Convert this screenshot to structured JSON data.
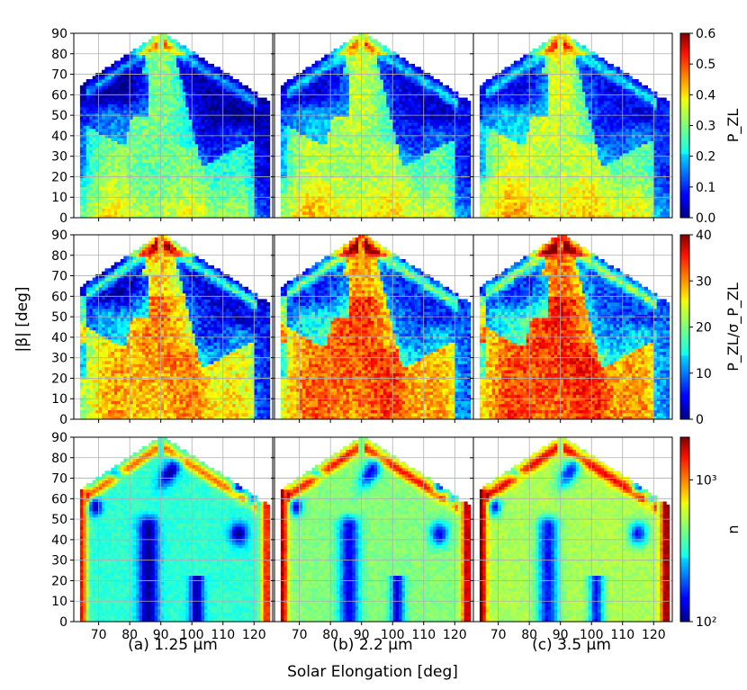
{
  "figure": {
    "ylabel": "|β| [deg]",
    "xlabel": "Solar Elongation [deg]",
    "column_labels": [
      "(a) 1.25 μm",
      "(b) 2.2 μm",
      "(c) 3.5 μm"
    ],
    "colorbars": [
      {
        "label": "P_ZL",
        "ticks": [
          "0.0",
          "0.1",
          "0.2",
          "0.3",
          "0.4",
          "0.5",
          "0.6"
        ],
        "range": [
          0,
          0.6
        ]
      },
      {
        "label": "P_ZL/σ_P_ZL",
        "ticks": [
          "0",
          "10",
          "20",
          "30",
          "40"
        ],
        "range": [
          0,
          40
        ]
      },
      {
        "label": "n",
        "ticks": [
          "10²",
          "10³"
        ],
        "range": [
          100,
          2000
        ],
        "scale": "log"
      }
    ]
  },
  "chart_data": {
    "type": "heatmap",
    "grid": true,
    "colormap": "jet",
    "xlim": [
      62,
      126
    ],
    "ylim": [
      0,
      90
    ],
    "xticks": [
      70,
      80,
      90,
      100,
      110,
      120
    ],
    "yticks": [
      0,
      10,
      20,
      30,
      40,
      50,
      60,
      70,
      80,
      90
    ],
    "wavelengths": [
      "1.25 μm",
      "2.2 μm",
      "3.5 μm"
    ],
    "rows": [
      {
        "quantity": "P_ZL",
        "panels": [
          {
            "column": "1.25 μm",
            "background": 0.18,
            "dark_region_level": 0.05,
            "sun_beam_peak": 0.3,
            "lobe_level": 0.22
          },
          {
            "column": "2.2 μm",
            "background": 0.2,
            "dark_region_level": 0.05,
            "sun_beam_peak": 0.38,
            "lobe_level": 0.28
          },
          {
            "column": "3.5 μm",
            "background": 0.2,
            "dark_region_level": 0.05,
            "sun_beam_peak": 0.42,
            "lobe_level": 0.3
          }
        ]
      },
      {
        "quantity": "P_ZL/σ_P_ZL",
        "panels": [
          {
            "column": "1.25 μm",
            "background": 18,
            "dark_region_level": 4,
            "sun_beam_peak": 32,
            "lobe_level": 22
          },
          {
            "column": "2.2 μm",
            "background": 20,
            "dark_region_level": 4,
            "sun_beam_peak": 30,
            "lobe_level": 25
          },
          {
            "column": "3.5 μm",
            "background": 22,
            "dark_region_level": 4,
            "sun_beam_peak": 30,
            "lobe_level": 27
          }
        ]
      },
      {
        "quantity": "n",
        "panels": [
          {
            "column": "1.25 μm",
            "background": 180,
            "edge_level": 1500,
            "hole_level": 110
          },
          {
            "column": "2.2 μm",
            "background": 300,
            "edge_level": 1500,
            "hole_level": 110
          },
          {
            "column": "3.5 μm",
            "background": 300,
            "edge_level": 1500,
            "hole_level": 110
          }
        ]
      }
    ]
  }
}
